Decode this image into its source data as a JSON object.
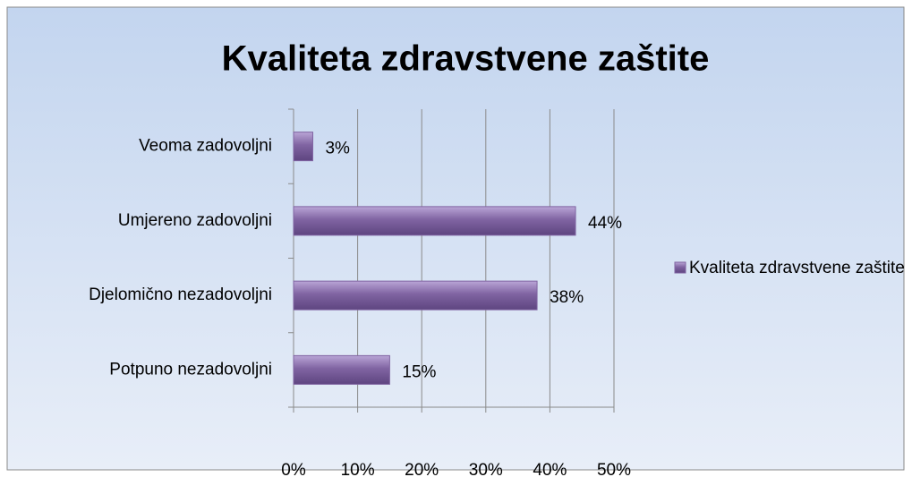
{
  "chart_data": {
    "type": "bar",
    "orientation": "horizontal",
    "title": "Kvaliteta zdravstvene zaštite",
    "categories": [
      "Veoma zadovoljni",
      "Umjereno zadovoljni",
      "Djelomično nezadovoljni",
      "Potpuno nezadovoljni"
    ],
    "series": [
      {
        "name": "Kvaliteta zdravstvene zaštite",
        "color": "#8064a2",
        "values": [
          3,
          44,
          38,
          15
        ],
        "value_labels": [
          "3%",
          "44%",
          "38%",
          "15%"
        ]
      }
    ],
    "xlim": [
      0,
      50
    ],
    "xticks": [
      {
        "value": 0,
        "label": "0%"
      },
      {
        "value": 10,
        "label": "10%"
      },
      {
        "value": 20,
        "label": "20%"
      },
      {
        "value": 30,
        "label": "30%"
      },
      {
        "value": 40,
        "label": "40%"
      },
      {
        "value": 50,
        "label": "50%"
      }
    ],
    "grid": true,
    "legend": "right"
  }
}
